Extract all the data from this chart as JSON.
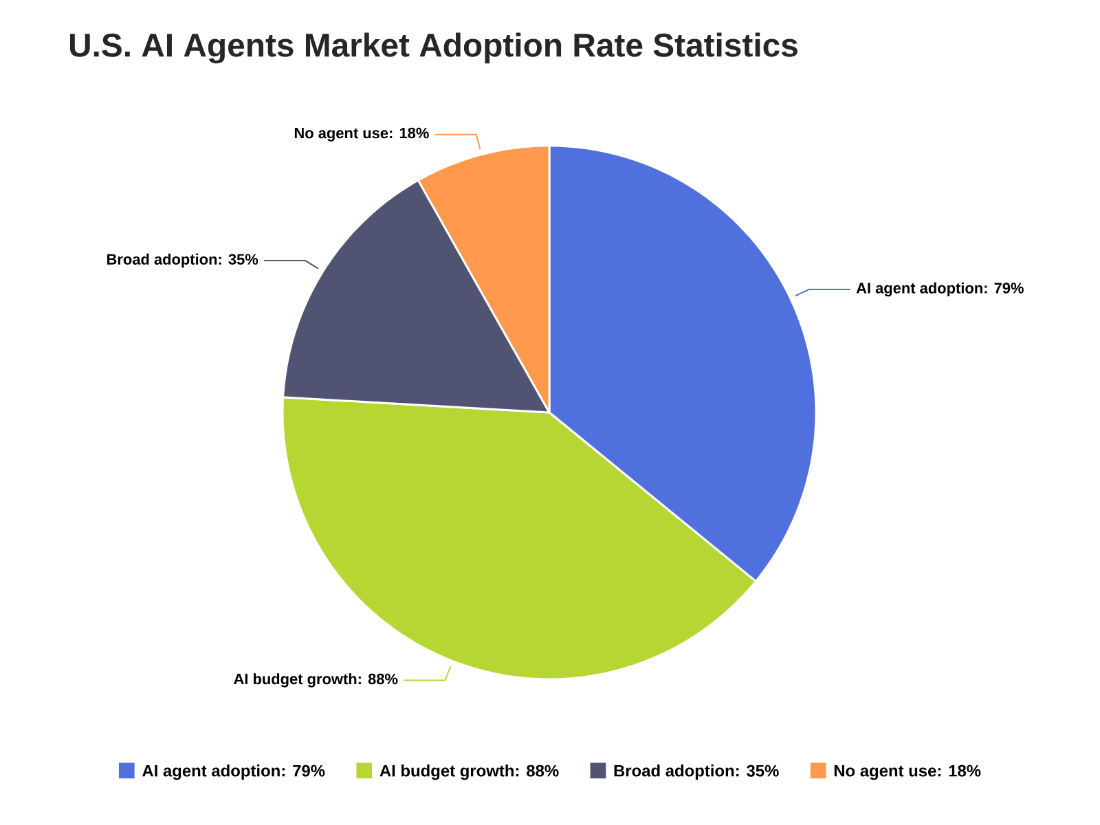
{
  "chart_data": {
    "type": "pie",
    "title": "U.S. AI Agents Market Adoption Rate Statistics",
    "categories": [
      "AI agent adoption: 79%",
      "AI budget growth: 88%",
      "Broad adoption: 35%",
      "No agent use: 18%"
    ],
    "values": [
      79,
      88,
      35,
      18
    ],
    "colors": [
      "#5070dd",
      "#b6d634",
      "#505372",
      "#ff994d"
    ],
    "legend": "bottom"
  }
}
